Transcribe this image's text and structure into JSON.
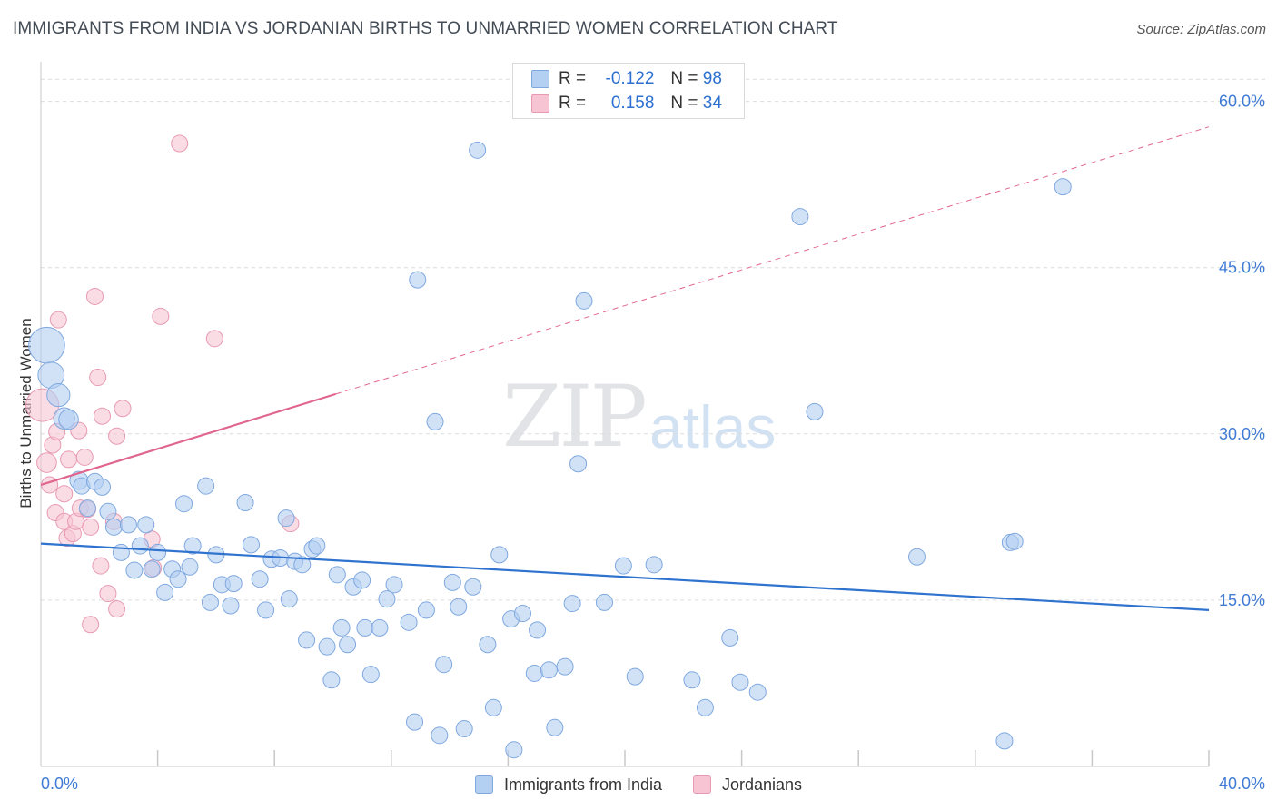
{
  "header": {
    "title": "IMMIGRANTS FROM INDIA VS JORDANIAN BIRTHS TO UNMARRIED WOMEN CORRELATION CHART",
    "source": "Source: ZipAtlas.com"
  },
  "watermark": {
    "zip": "ZIP",
    "atlas": "atlas"
  },
  "legend_top": {
    "rows": [
      {
        "r_label": "R =",
        "r_value": "-0.122",
        "n_label": "N =",
        "n_value": "98"
      },
      {
        "r_label": "R =",
        "r_value": "0.158",
        "n_label": "N =",
        "n_value": "34"
      }
    ]
  },
  "legend_bottom": {
    "items": [
      "Immigrants from India",
      "Jordanians"
    ]
  },
  "colors": {
    "india_fill": "#b3cff2",
    "india_stroke": "#7fa8df",
    "india_line": "#2f73cf",
    "jordan_fill": "#f6c4d3",
    "jordan_stroke": "#e89ab3",
    "jordan_line": "#e0668e",
    "tick_label": "#3f7bd4",
    "grid": "#dcdcdc"
  },
  "chart_data": {
    "type": "scatter",
    "title": "IMMIGRANTS FROM INDIA VS JORDANIAN BIRTHS TO UNMARRIED WOMEN CORRELATION CHART",
    "xlabel": "",
    "ylabel": "Births to Unmarried Women",
    "xlim": [
      0,
      40
    ],
    "ylim": [
      0,
      63
    ],
    "x_tick_labels": [
      "0.0%",
      "40.0%"
    ],
    "y_ticks": [
      15,
      30,
      45,
      60
    ],
    "y_tick_labels": [
      "15.0%",
      "30.0%",
      "45.0%",
      "60.0%"
    ],
    "grid": true,
    "legend_position": "top-center",
    "series": [
      {
        "name": "Immigrants from India",
        "r": -0.122,
        "n": 98,
        "trend": {
          "x": [
            0,
            40
          ],
          "y": [
            20.1,
            14.1
          ],
          "style": "solid"
        },
        "points": [
          [
            0.2,
            38.0,
            2.2
          ],
          [
            0.35,
            35.3,
            1.6
          ],
          [
            0.6,
            33.5,
            1.4
          ],
          [
            0.8,
            31.4,
            1.3
          ],
          [
            0.95,
            31.3,
            1.2
          ],
          [
            1.3,
            25.8,
            1.1
          ],
          [
            1.4,
            25.3,
            1.0
          ],
          [
            1.85,
            25.7,
            1.0
          ],
          [
            2.1,
            25.2,
            1.0
          ],
          [
            1.6,
            23.3,
            1.0
          ],
          [
            2.3,
            23.0,
            1.0
          ],
          [
            2.5,
            21.6,
            1.0
          ],
          [
            3.0,
            21.8,
            1.0
          ],
          [
            3.6,
            21.8,
            1.0
          ],
          [
            3.4,
            19.9,
            1.0
          ],
          [
            2.75,
            19.3,
            1.0
          ],
          [
            3.2,
            17.7,
            1.0
          ],
          [
            3.8,
            17.8,
            1.0
          ],
          [
            4.0,
            19.3,
            1.0
          ],
          [
            4.25,
            15.7,
            1.0
          ],
          [
            4.5,
            17.8,
            1.0
          ],
          [
            4.7,
            16.9,
            1.0
          ],
          [
            4.9,
            23.7,
            1.0
          ],
          [
            5.1,
            18.0,
            1.0
          ],
          [
            5.2,
            19.9,
            1.0
          ],
          [
            5.65,
            25.3,
            1.0
          ],
          [
            6.0,
            19.1,
            1.0
          ],
          [
            5.8,
            14.8,
            1.0
          ],
          [
            6.2,
            16.4,
            1.0
          ],
          [
            6.5,
            14.5,
            1.0
          ],
          [
            6.6,
            16.5,
            1.0
          ],
          [
            7.0,
            23.8,
            1.0
          ],
          [
            7.2,
            20.0,
            1.0
          ],
          [
            7.5,
            16.9,
            1.0
          ],
          [
            7.7,
            14.1,
            1.0
          ],
          [
            7.9,
            18.7,
            1.0
          ],
          [
            8.2,
            18.8,
            1.0
          ],
          [
            8.4,
            22.4,
            1.0
          ],
          [
            8.5,
            15.1,
            1.0
          ],
          [
            8.7,
            18.5,
            1.0
          ],
          [
            8.95,
            18.2,
            1.0
          ],
          [
            9.3,
            19.6,
            1.0
          ],
          [
            9.45,
            19.9,
            1.0
          ],
          [
            9.1,
            11.4,
            1.0
          ],
          [
            9.8,
            10.8,
            1.0
          ],
          [
            9.95,
            7.8,
            1.0
          ],
          [
            10.15,
            17.3,
            1.0
          ],
          [
            10.3,
            12.5,
            1.0
          ],
          [
            10.5,
            11.0,
            1.0
          ],
          [
            10.7,
            16.2,
            1.0
          ],
          [
            11.0,
            16.8,
            1.0
          ],
          [
            11.1,
            12.5,
            1.0
          ],
          [
            11.3,
            8.3,
            1.0
          ],
          [
            11.6,
            12.5,
            1.0
          ],
          [
            11.85,
            15.1,
            1.0
          ],
          [
            12.1,
            16.4,
            1.0
          ],
          [
            12.6,
            13.0,
            1.0
          ],
          [
            12.8,
            4.0,
            1.0
          ],
          [
            12.9,
            43.9,
            1.0
          ],
          [
            13.2,
            14.1,
            1.0
          ],
          [
            13.5,
            31.1,
            1.0
          ],
          [
            13.65,
            2.8,
            1.0
          ],
          [
            13.8,
            9.2,
            1.0
          ],
          [
            14.1,
            16.6,
            1.0
          ],
          [
            14.3,
            14.4,
            1.0
          ],
          [
            14.5,
            3.4,
            1.0
          ],
          [
            14.8,
            16.2,
            1.0
          ],
          [
            14.95,
            55.6,
            1.0
          ],
          [
            15.3,
            11.0,
            1.0
          ],
          [
            15.5,
            5.3,
            1.0
          ],
          [
            15.7,
            19.1,
            1.0
          ],
          [
            16.1,
            13.3,
            1.0
          ],
          [
            16.2,
            1.5,
            1.0
          ],
          [
            16.5,
            13.8,
            1.0
          ],
          [
            16.9,
            8.4,
            1.0
          ],
          [
            17.0,
            12.3,
            1.0
          ],
          [
            17.4,
            8.7,
            1.0
          ],
          [
            17.6,
            3.5,
            1.0
          ],
          [
            17.95,
            9.0,
            1.0
          ],
          [
            18.2,
            14.7,
            1.0
          ],
          [
            18.4,
            27.3,
            1.0
          ],
          [
            18.6,
            42.0,
            1.0
          ],
          [
            19.3,
            14.8,
            1.0
          ],
          [
            19.95,
            18.1,
            1.0
          ],
          [
            20.35,
            8.1,
            1.0
          ],
          [
            21.0,
            18.2,
            1.0
          ],
          [
            22.3,
            7.8,
            1.0
          ],
          [
            22.75,
            5.3,
            1.0
          ],
          [
            23.6,
            11.6,
            1.0
          ],
          [
            23.95,
            7.6,
            1.0
          ],
          [
            24.55,
            6.7,
            1.0
          ],
          [
            26.0,
            49.6,
            1.0
          ],
          [
            26.5,
            32.0,
            1.0
          ],
          [
            30.0,
            18.9,
            1.0
          ],
          [
            33.2,
            20.2,
            1.0
          ],
          [
            33.35,
            20.3,
            1.0
          ],
          [
            33.0,
            2.3,
            1.0
          ],
          [
            35.0,
            52.3,
            1.0
          ]
        ]
      },
      {
        "name": "Jordanians",
        "r": 0.158,
        "n": 34,
        "trend": {
          "x": [
            0,
            10.1
          ],
          "y": [
            25.4,
            33.6
          ],
          "dashed_to": [
            40,
            57.7
          ],
          "style": "solid-then-dashed"
        },
        "points": [
          [
            0.05,
            32.6,
            2.0
          ],
          [
            0.2,
            27.4,
            1.2
          ],
          [
            0.3,
            25.4,
            1.0
          ],
          [
            0.4,
            29.0,
            1.0
          ],
          [
            0.5,
            22.9,
            1.0
          ],
          [
            0.55,
            30.2,
            1.0
          ],
          [
            0.6,
            40.3,
            1.0
          ],
          [
            0.8,
            24.6,
            1.0
          ],
          [
            0.8,
            22.1,
            1.0
          ],
          [
            0.9,
            20.6,
            1.0
          ],
          [
            0.95,
            27.7,
            1.0
          ],
          [
            1.1,
            21.0,
            1.0
          ],
          [
            1.2,
            22.1,
            1.0
          ],
          [
            1.3,
            30.3,
            1.0
          ],
          [
            1.35,
            23.3,
            1.0
          ],
          [
            1.5,
            27.9,
            1.0
          ],
          [
            1.6,
            23.2,
            1.0
          ],
          [
            1.7,
            21.6,
            1.0
          ],
          [
            1.7,
            12.8,
            1.0
          ],
          [
            1.85,
            42.4,
            1.0
          ],
          [
            1.95,
            35.1,
            1.0
          ],
          [
            2.05,
            18.1,
            1.0
          ],
          [
            2.1,
            31.6,
            1.0
          ],
          [
            2.3,
            15.6,
            1.0
          ],
          [
            2.5,
            22.1,
            1.0
          ],
          [
            2.6,
            29.8,
            1.0
          ],
          [
            2.6,
            14.2,
            1.0
          ],
          [
            2.8,
            32.3,
            1.0
          ],
          [
            3.8,
            20.5,
            1.0
          ],
          [
            3.85,
            17.9,
            1.0
          ],
          [
            4.1,
            40.6,
            1.0
          ],
          [
            4.75,
            56.2,
            1.0
          ],
          [
            5.95,
            38.6,
            1.0
          ],
          [
            8.55,
            21.9,
            1.0
          ]
        ]
      }
    ]
  }
}
